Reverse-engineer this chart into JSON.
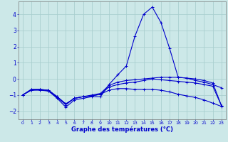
{
  "xlabel": "Graphe des températures (°C)",
  "background_color": "#cce8e8",
  "grid_color": "#aacfcf",
  "line_color": "#0000cc",
  "xlim": [
    -0.5,
    23.5
  ],
  "ylim": [
    -2.5,
    4.8
  ],
  "xticks": [
    0,
    1,
    2,
    3,
    4,
    5,
    6,
    7,
    8,
    9,
    10,
    11,
    12,
    13,
    14,
    15,
    16,
    17,
    18,
    19,
    20,
    21,
    22,
    23
  ],
  "yticks": [
    -2,
    -1,
    0,
    1,
    2,
    3,
    4
  ],
  "series": [
    {
      "x": [
        0,
        1,
        2,
        3,
        4,
        5,
        6,
        7,
        8,
        9,
        10,
        11,
        12,
        13,
        14,
        15,
        16,
        17,
        18,
        19,
        20,
        21,
        22,
        23
      ],
      "y": [
        -1.0,
        -0.7,
        -0.7,
        -0.75,
        -1.2,
        -1.75,
        -1.3,
        -1.2,
        -1.1,
        -1.1,
        -0.35,
        0.25,
        0.8,
        2.65,
        4.0,
        4.45,
        3.5,
        1.9,
        0.1,
        0.05,
        -0.1,
        -0.2,
        -0.35,
        -0.55
      ]
    },
    {
      "x": [
        0,
        1,
        2,
        3,
        4,
        5,
        6,
        7,
        8,
        9,
        10,
        11,
        12,
        13,
        14,
        15,
        16,
        17,
        18,
        19,
        20,
        21,
        22,
        23
      ],
      "y": [
        -1.0,
        -0.7,
        -0.65,
        -0.75,
        -1.15,
        -1.6,
        -1.2,
        -1.1,
        -1.0,
        -0.9,
        -0.4,
        -0.2,
        -0.1,
        -0.05,
        0.0,
        0.05,
        0.1,
        0.1,
        0.1,
        0.05,
        0.0,
        -0.1,
        -0.25,
        -1.65
      ]
    },
    {
      "x": [
        0,
        1,
        2,
        3,
        4,
        5,
        6,
        7,
        8,
        9,
        10,
        11,
        12,
        13,
        14,
        15,
        16,
        17,
        18,
        19,
        20,
        21,
        22,
        23
      ],
      "y": [
        -1.0,
        -0.65,
        -0.65,
        -0.7,
        -1.1,
        -1.55,
        -1.2,
        -1.1,
        -1.05,
        -0.95,
        -0.5,
        -0.35,
        -0.25,
        -0.2,
        -0.1,
        0.0,
        -0.05,
        -0.1,
        -0.15,
        -0.2,
        -0.25,
        -0.35,
        -0.45,
        -1.65
      ]
    },
    {
      "x": [
        0,
        1,
        2,
        3,
        4,
        5,
        6,
        7,
        8,
        9,
        10,
        11,
        12,
        13,
        14,
        15,
        16,
        17,
        18,
        19,
        20,
        21,
        22,
        23
      ],
      "y": [
        -1.0,
        -0.65,
        -0.65,
        -0.7,
        -1.1,
        -1.55,
        -1.2,
        -1.1,
        -1.05,
        -0.95,
        -0.7,
        -0.6,
        -0.6,
        -0.65,
        -0.65,
        -0.65,
        -0.7,
        -0.8,
        -0.95,
        -1.05,
        -1.15,
        -1.3,
        -1.5,
        -1.7
      ]
    }
  ]
}
